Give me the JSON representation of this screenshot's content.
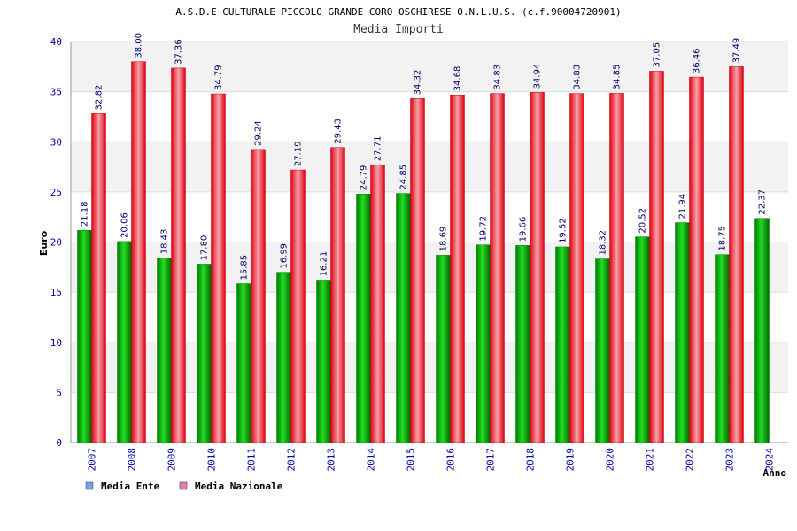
{
  "chart_data": {
    "type": "bar",
    "title": "A.S.D.E CULTURALE PICCOLO GRANDE CORO OSCHIRESE O.N.L.U.S. (c.f.90004720901)",
    "subtitle": "Media Importi",
    "xlabel": "Anno",
    "ylabel": "Euro",
    "ylim": [
      0,
      40
    ],
    "yticks": [
      0,
      5,
      10,
      15,
      20,
      25,
      30,
      35,
      40
    ],
    "categories": [
      "2007",
      "2008",
      "2009",
      "2010",
      "2011",
      "2012",
      "2013",
      "2014",
      "2015",
      "2016",
      "2017",
      "2018",
      "2019",
      "2020",
      "2021",
      "2022",
      "2023",
      "2024"
    ],
    "series": [
      {
        "name": "Media Ente",
        "color": "#00b000",
        "values": [
          21.18,
          20.06,
          18.43,
          17.8,
          15.85,
          16.99,
          16.21,
          24.79,
          24.85,
          18.69,
          19.72,
          19.66,
          19.52,
          18.32,
          20.52,
          21.94,
          18.75,
          22.37
        ],
        "labels": [
          "21.18",
          "20.06",
          "18.43",
          "17.80",
          "15.85",
          "16.99",
          "16.21",
          "24.79",
          "24.85",
          "18.69",
          "19.72",
          "19.66",
          "19.52",
          "18.32",
          "20.52",
          "21.94",
          "18.75",
          "22.37"
        ]
      },
      {
        "name": "Media Nazionale",
        "color": "#e8101e",
        "values": [
          32.82,
          38.0,
          37.36,
          34.79,
          29.24,
          27.19,
          29.43,
          27.71,
          34.32,
          34.68,
          34.83,
          34.94,
          34.83,
          34.85,
          37.05,
          36.46,
          37.49,
          null
        ],
        "labels": [
          "32.82",
          "38.00",
          "37.36",
          "34.79",
          "29.24",
          "27.19",
          "29.43",
          "27.71",
          "34.32",
          "34.68",
          "34.83",
          "34.94",
          "34.83",
          "34.85",
          "37.05",
          "36.46",
          "37.49",
          ""
        ]
      }
    ],
    "legend": {
      "placement": "bottom-left",
      "items": [
        {
          "label": "Media Ente",
          "color": "#6aa6e8"
        },
        {
          "label": "Media Nazionale",
          "color": "#e080b0"
        }
      ]
    },
    "grid": true,
    "band_colors": [
      "#f2f2f2",
      "#ffffff"
    ]
  }
}
